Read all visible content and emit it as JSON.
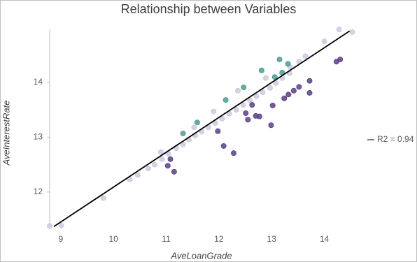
{
  "chart_data": {
    "type": "scatter",
    "title": "Relationship between Variables",
    "x_label": "AveLoanGrade",
    "y_label": "AveInterestRate",
    "xlim": [
      8.79,
      14.55
    ],
    "ylim": [
      11.36,
      14.97
    ],
    "xticks": [
      9,
      10,
      11,
      12,
      13,
      14
    ],
    "yticks": [
      12,
      13,
      14
    ],
    "series": [
      {
        "color": "#cdc9de",
        "x": [
          8.79,
          9.01,
          9.81,
          10.31,
          10.46,
          10.66,
          10.78,
          10.92,
          11.04,
          11.19,
          11.32,
          11.43,
          11.55,
          11.67,
          11.8,
          11.93,
          12.06,
          12.2,
          12.33,
          12.46,
          12.59,
          12.71,
          12.83,
          12.97,
          13.08,
          13.2,
          13.34,
          13.52,
          13.64,
          14.0,
          14.28,
          14.53,
          10.9,
          11.53,
          11.9,
          12.36,
          12.89,
          13.35
        ],
        "y": [
          11.38,
          11.39,
          11.89,
          12.23,
          12.31,
          12.43,
          12.5,
          12.6,
          12.7,
          12.8,
          12.87,
          12.96,
          13.03,
          13.1,
          13.18,
          13.26,
          13.34,
          13.43,
          13.5,
          13.59,
          13.67,
          13.75,
          13.82,
          13.9,
          13.99,
          14.08,
          14.17,
          14.38,
          14.48,
          14.75,
          14.97,
          14.92,
          12.73,
          13.18,
          13.47,
          13.85,
          14.08,
          14.28
        ]
      },
      {
        "color": "#4e9c8f",
        "x": [
          13.15,
          13.31,
          12.81,
          12.47,
          12.13,
          11.59,
          11.32,
          13.06,
          13.2
        ],
        "y": [
          14.42,
          14.34,
          14.22,
          13.91,
          13.68,
          13.27,
          13.07,
          14.1,
          14.18
        ]
      },
      {
        "color": "#5b3f86",
        "x": [
          14.3,
          14.23,
          13.72,
          13.52,
          13.42,
          13.32,
          13.24,
          13.72,
          13.02,
          12.63,
          12.51,
          12.55,
          12.7,
          12.77,
          12.99,
          11.98,
          12.09,
          12.28,
          11.08,
          11.03,
          11.15
        ],
        "y": [
          14.42,
          14.38,
          14.03,
          13.92,
          13.85,
          13.78,
          13.71,
          13.81,
          13.58,
          13.59,
          13.44,
          13.32,
          13.39,
          13.38,
          13.22,
          13.11,
          12.84,
          12.71,
          12.6,
          12.48,
          12.37
        ]
      }
    ],
    "trendline": {
      "x": [
        8.87,
        14.48
      ],
      "y": [
        11.37,
        14.94
      ],
      "label": "R2 = 0.94",
      "color": "#000000"
    }
  }
}
